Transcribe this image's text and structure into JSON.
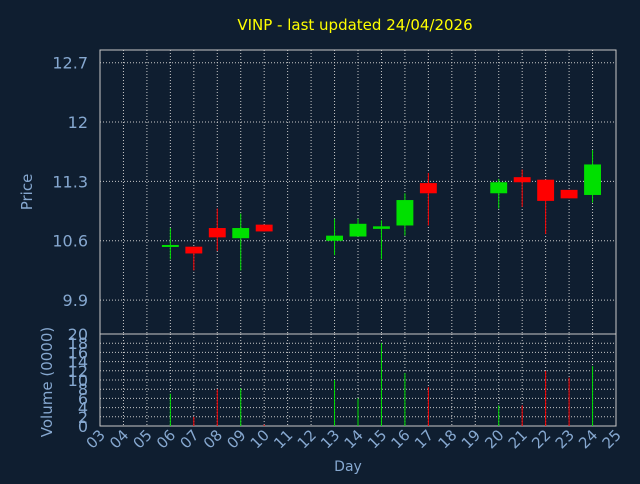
{
  "chart_data": {
    "type": "candlestick",
    "title": "VINP - last updated 24/04/2026",
    "price_panel": {
      "ylabel": "Price",
      "ylim": [
        9.5,
        12.85
      ],
      "yticks": [
        "12.7",
        "12",
        "11.3",
        "10.6",
        "9.9"
      ],
      "grid": true
    },
    "volume_panel": {
      "ylabel": "Volume (0000)",
      "ylim": [
        0,
        20
      ],
      "yticks": [
        "20",
        "18",
        "16",
        "14",
        "12",
        "10",
        "8",
        "6",
        "4",
        "2",
        "0"
      ],
      "grid": true
    },
    "xlabel": "Day",
    "xticks": [
      "03",
      "04",
      "05",
      "06",
      "07",
      "08",
      "09",
      "10",
      "11",
      "12",
      "13",
      "14",
      "15",
      "16",
      "17",
      "18",
      "19",
      "20",
      "21",
      "22",
      "23",
      "24",
      "25"
    ],
    "candles": [
      {
        "day": "06",
        "open": 10.55,
        "close": 10.55,
        "high": 10.75,
        "low": 10.38,
        "volume": 7.0
      },
      {
        "day": "07",
        "open": 10.53,
        "close": 10.45,
        "high": 10.53,
        "low": 10.25,
        "volume": 2.0
      },
      {
        "day": "08",
        "open": 10.75,
        "close": 10.64,
        "high": 10.98,
        "low": 10.48,
        "volume": 8.0
      },
      {
        "day": "09",
        "open": 10.63,
        "close": 10.75,
        "high": 10.92,
        "low": 10.25,
        "volume": 8.2
      },
      {
        "day": "10",
        "open": 10.79,
        "close": 10.71,
        "high": 10.79,
        "low": 10.71,
        "volume": 0.3
      },
      {
        "day": "13",
        "open": 10.6,
        "close": 10.66,
        "high": 10.86,
        "low": 10.43,
        "volume": 10.0
      },
      {
        "day": "14",
        "open": 10.65,
        "close": 10.8,
        "high": 10.86,
        "low": 10.65,
        "volume": 6.0
      },
      {
        "day": "15",
        "open": 10.74,
        "close": 10.77,
        "high": 10.84,
        "low": 10.38,
        "volume": 18.0
      },
      {
        "day": "16",
        "open": 10.78,
        "close": 11.08,
        "high": 11.16,
        "low": 10.66,
        "volume": 11.5
      },
      {
        "day": "17",
        "open": 11.28,
        "close": 11.16,
        "high": 11.4,
        "low": 10.78,
        "volume": 8.5
      },
      {
        "day": "20",
        "open": 11.16,
        "close": 11.29,
        "high": 11.33,
        "low": 10.98,
        "volume": 4.5
      },
      {
        "day": "21",
        "open": 11.35,
        "close": 11.29,
        "high": 11.44,
        "low": 11.0,
        "volume": 4.5
      },
      {
        "day": "22",
        "open": 11.32,
        "close": 11.07,
        "high": 11.32,
        "low": 10.68,
        "volume": 12.0
      },
      {
        "day": "23",
        "open": 11.2,
        "close": 11.1,
        "high": 11.2,
        "low": 11.1,
        "volume": 10.5
      },
      {
        "day": "24",
        "open": 11.14,
        "close": 11.5,
        "high": 11.67,
        "low": 11.05,
        "volume": 13.0
      }
    ],
    "colors": {
      "background": "#0f1e30",
      "plot_bg": "#0f1e30",
      "grid": "#c8c8c8",
      "axis_text": "#86a8d0",
      "title": "#ffff00",
      "up": "#00e000",
      "down": "#ff0000",
      "tick_text": "#86a8d0"
    }
  }
}
